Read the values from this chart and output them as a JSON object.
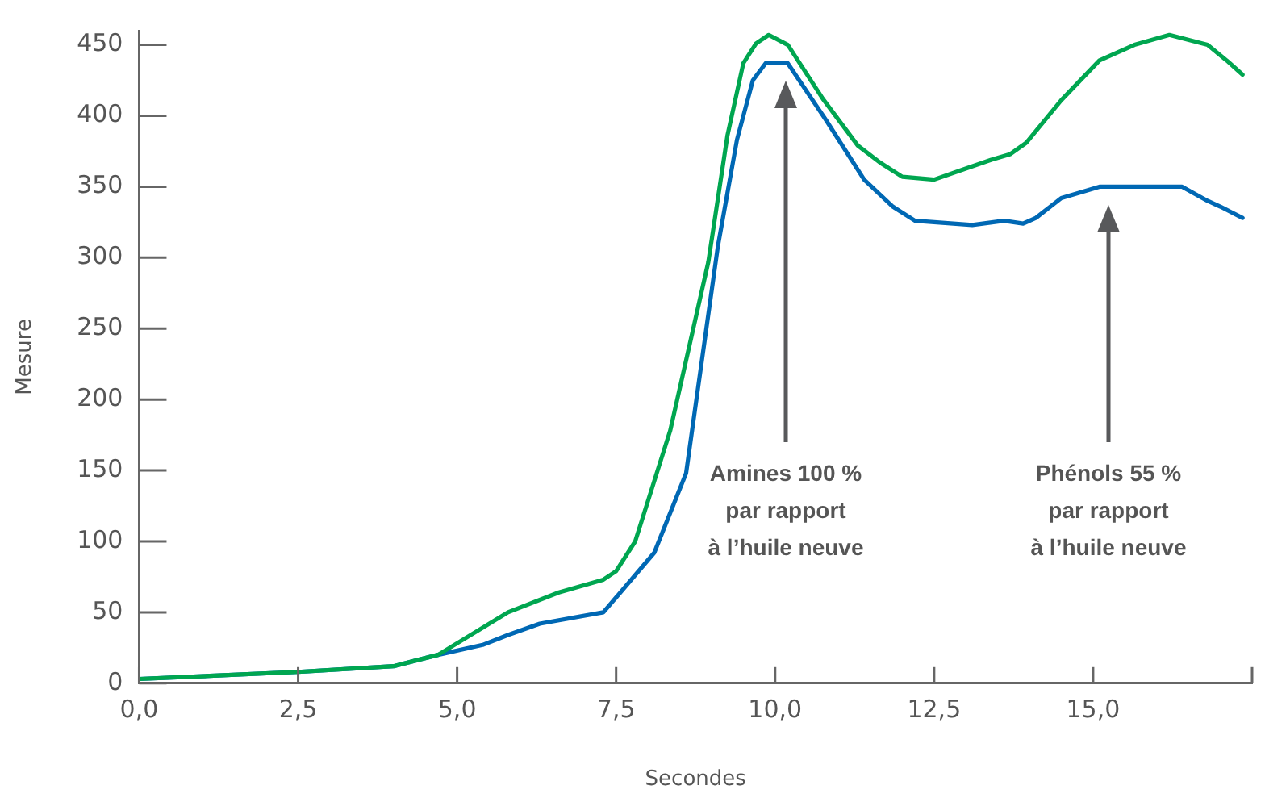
{
  "chart_data": {
    "type": "line",
    "xlabel": "Secondes",
    "ylabel": "Mesure",
    "xlim": [
      0,
      17.5
    ],
    "ylim": [
      0,
      460
    ],
    "xticks": [
      {
        "value": 0,
        "label": "0,0"
      },
      {
        "value": 2.5,
        "label": "2,5"
      },
      {
        "value": 5,
        "label": "5,0"
      },
      {
        "value": 7.5,
        "label": "7,5"
      },
      {
        "value": 10,
        "label": "10,0"
      },
      {
        "value": 12.5,
        "label": "12,5"
      },
      {
        "value": 15,
        "label": "15,0"
      },
      {
        "value": 17.5,
        "label": null
      }
    ],
    "yticks": [
      0,
      50,
      100,
      150,
      200,
      250,
      300,
      350,
      400,
      450
    ],
    "grid": false,
    "marker": "none",
    "line_style": "solid",
    "series": [
      {
        "color": "#00a650",
        "x": [
          0,
          2.5,
          4.0,
          4.7,
          5.8,
          6.6,
          7.3,
          7.5,
          7.8,
          8.35,
          8.95,
          9.25,
          9.5,
          9.7,
          9.9,
          10.2,
          10.75,
          11.3,
          11.65,
          12.0,
          12.5,
          12.95,
          13.4,
          13.7,
          13.95,
          14.5,
          15.1,
          15.65,
          16.2,
          16.8,
          17.1,
          17.35
        ],
        "values": [
          3,
          8,
          12,
          20,
          50,
          64,
          73,
          79,
          100,
          178,
          297,
          386,
          437,
          451,
          457,
          450,
          412,
          379,
          367,
          357,
          355,
          362,
          369,
          373,
          381,
          411,
          439,
          450,
          457,
          450,
          439,
          429
        ]
      },
      {
        "color": "#0068b4",
        "x": [
          0,
          2.5,
          4.0,
          4.7,
          5.4,
          5.8,
          6.3,
          7.3,
          8.1,
          8.6,
          9.1,
          9.4,
          9.65,
          9.85,
          10.2,
          10.8,
          11.4,
          11.85,
          12.2,
          13.1,
          13.6,
          13.9,
          14.1,
          14.5,
          15.1,
          16.4,
          16.8,
          17.0,
          17.35
        ],
        "values": [
          3,
          8,
          12,
          20,
          27,
          34,
          42,
          50,
          92,
          148,
          308,
          383,
          425,
          437,
          437,
          397,
          355,
          336,
          326,
          323,
          326,
          324,
          328,
          342,
          350,
          350,
          340,
          336,
          328
        ]
      }
    ],
    "annotations": [
      "Amines 100 %\npar rapport\nà l’huile neuve",
      "Phénols 55 %\npar rapport\nà l’huile neuve"
    ]
  }
}
